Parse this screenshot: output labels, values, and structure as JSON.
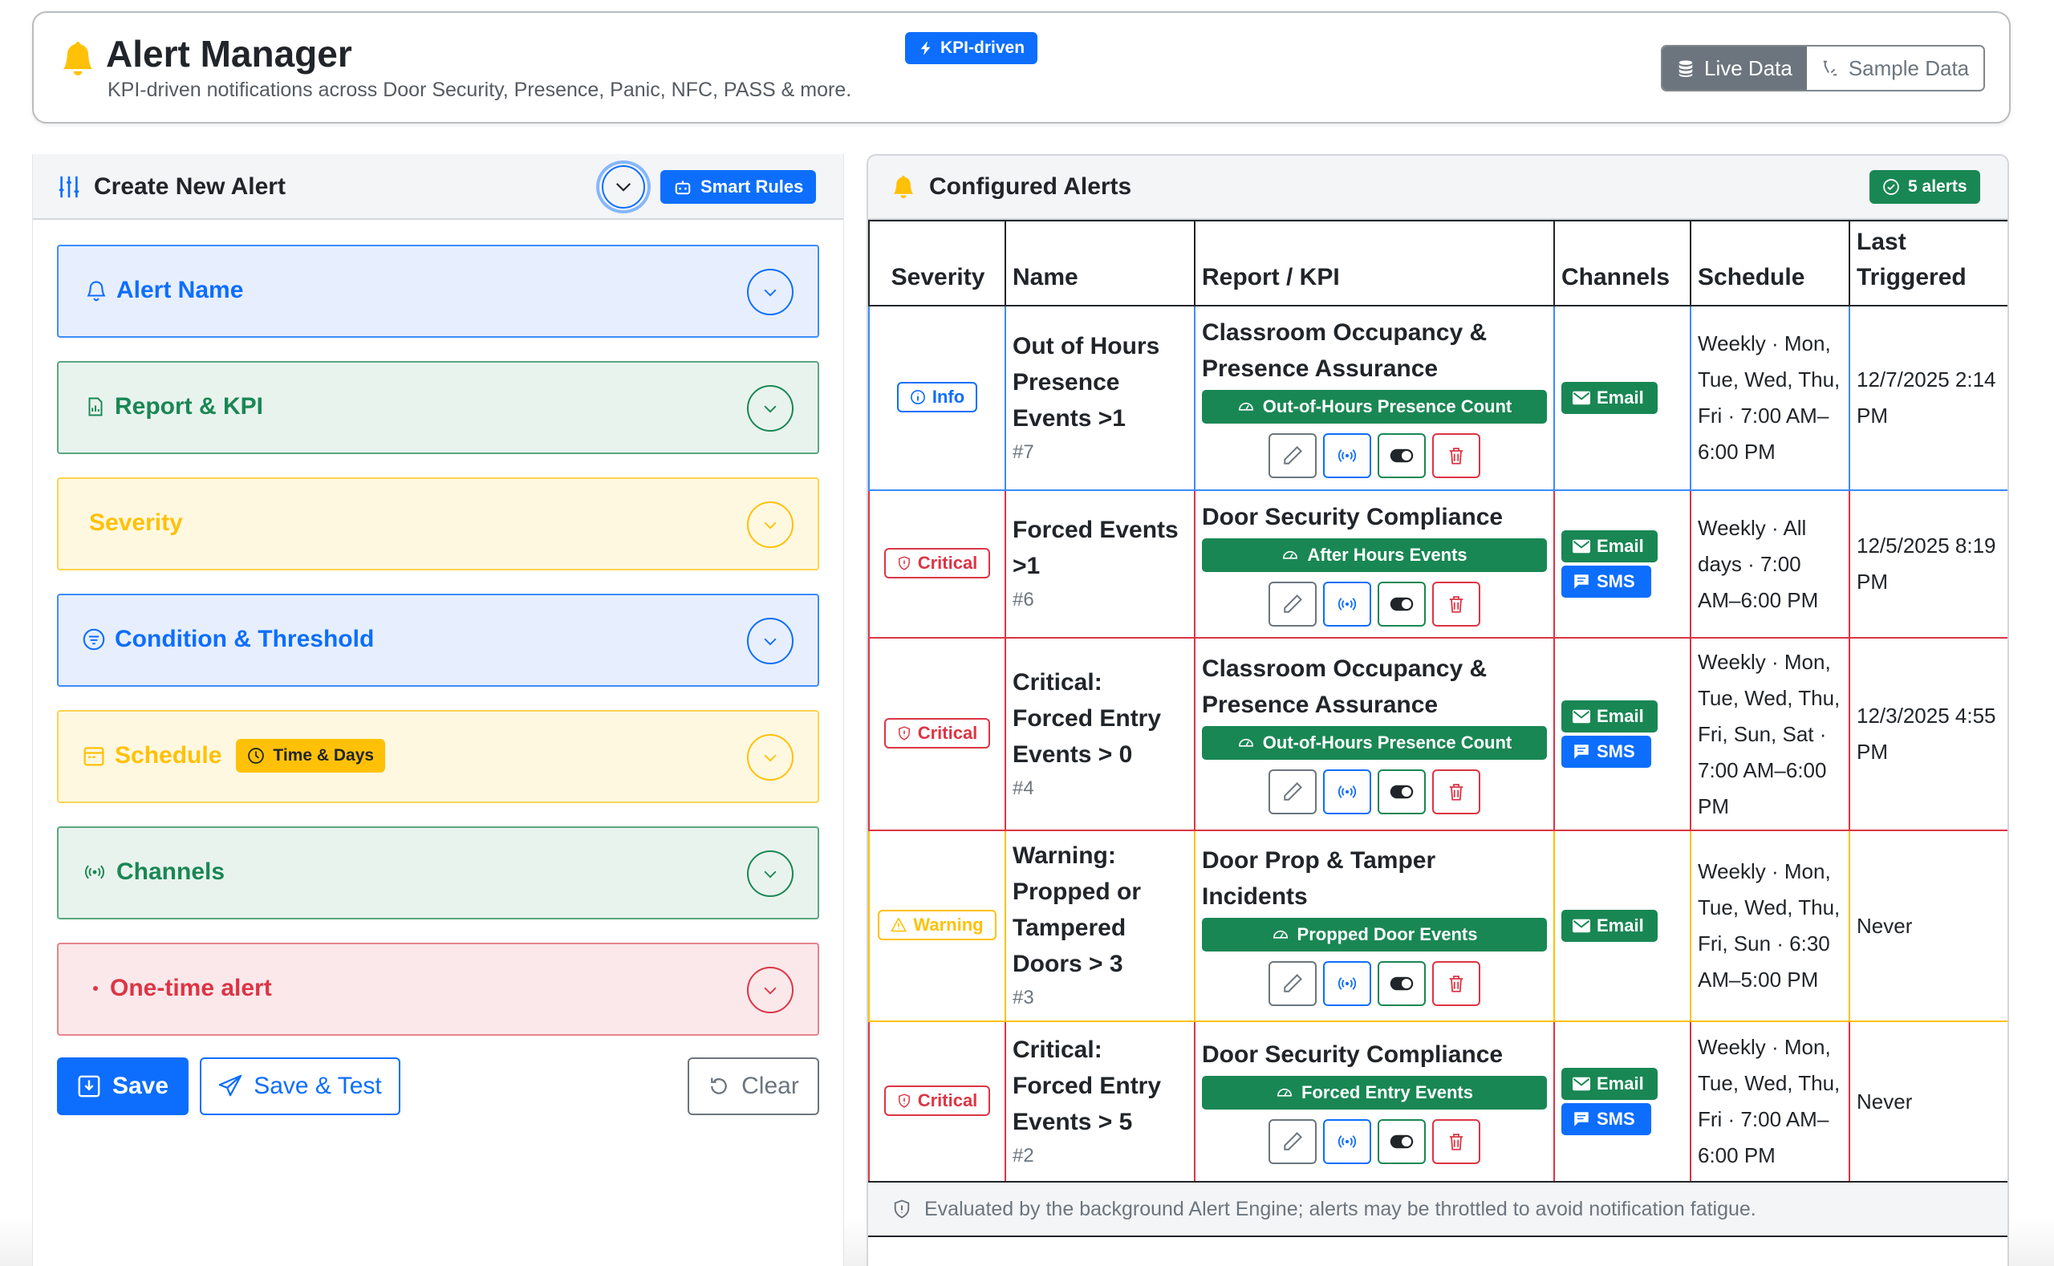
{
  "header": {
    "title": "Alert Manager",
    "subtitle": "KPI-driven notifications across Door Security, Presence, Panic, NFC, PASS & more.",
    "badge": "KPI-driven",
    "toggle": {
      "live": "Live Data",
      "sample": "Sample Data",
      "active": "live"
    }
  },
  "create_panel": {
    "title": "Create New Alert",
    "smart_rules": "Smart Rules",
    "sections": [
      {
        "label": "Alert Name",
        "color": "blue",
        "icon": "bell-icon"
      },
      {
        "label": "Report & KPI",
        "color": "green",
        "icon": "report-icon"
      },
      {
        "label": "Severity",
        "color": "yellow",
        "icon": ""
      },
      {
        "label": "Condition & Threshold",
        "color": "blue",
        "icon": "filter-icon"
      },
      {
        "label": "Schedule",
        "color": "yellow",
        "icon": "calendar-icon",
        "badge": "Time & Days"
      },
      {
        "label": "Channels",
        "color": "green",
        "icon": "broadcast-icon"
      },
      {
        "label": "One-time alert",
        "color": "red",
        "icon": "dot-icon"
      }
    ],
    "buttons": {
      "save": "Save",
      "save_test": "Save & Test",
      "clear": "Clear"
    }
  },
  "alerts_panel": {
    "title": "Configured Alerts",
    "count_badge": "5 alerts",
    "columns": [
      "Severity",
      "Name",
      "Report / KPI",
      "Channels",
      "Schedule",
      "Last Triggered"
    ],
    "rows": [
      {
        "severity": "Info",
        "severity_level": "info",
        "name": "Out of Hours Presence Events >1",
        "id": "#7",
        "report": "Classroom Occupancy & Presence Assurance",
        "kpi": "Out-of-Hours Presence Count",
        "channels": [
          "Email"
        ],
        "schedule": "Weekly · Mon, Tue, Wed, Thu, Fri · 7:00 AM–6:00 PM",
        "last_triggered": "12/7/2025 2:14 PM"
      },
      {
        "severity": "Critical",
        "severity_level": "critical",
        "name": "Forced Events >1",
        "id": "#6",
        "report": "Door Security Compliance",
        "kpi": "After Hours Events",
        "channels": [
          "Email",
          "SMS"
        ],
        "schedule": "Weekly · All days · 7:00 AM–6:00 PM",
        "last_triggered": "12/5/2025 8:19 PM"
      },
      {
        "severity": "Critical",
        "severity_level": "critical",
        "name": "Critical: Forced Entry Events > 0",
        "id": "#4",
        "report": "Classroom Occupancy & Presence Assurance",
        "kpi": "Out-of-Hours Presence Count",
        "channels": [
          "Email",
          "SMS"
        ],
        "schedule": "Weekly · Mon, Tue, Wed, Thu, Fri, Sun, Sat · 7:00 AM–6:00 PM",
        "last_triggered": "12/3/2025 4:55 PM"
      },
      {
        "severity": "Warning",
        "severity_level": "warning",
        "name": "Warning: Propped or Tampered Doors > 3",
        "id": "#3",
        "report": "Door Prop & Tamper Incidents",
        "kpi": "Propped Door Events",
        "channels": [
          "Email"
        ],
        "schedule": "Weekly · Mon, Tue, Wed, Thu, Fri, Sun · 6:30 AM–5:00 PM",
        "last_triggered": "Never"
      },
      {
        "severity": "Critical",
        "severity_level": "critical",
        "name": "Critical: Forced Entry Events > 5",
        "id": "#2",
        "report": "Door Security Compliance",
        "kpi": "Forced Entry Events",
        "channels": [
          "Email",
          "SMS"
        ],
        "schedule": "Weekly · Mon, Tue, Wed, Thu, Fri · 7:00 AM–6:00 PM",
        "last_triggered": "Never"
      }
    ],
    "footer": "Evaluated by the background Alert Engine; alerts may be throttled to avoid notification fatigue."
  },
  "colors": {
    "primary": "#0d6efd",
    "success": "#198754",
    "warning": "#ffc107",
    "danger": "#dc3545",
    "secondary": "#6c757d"
  }
}
